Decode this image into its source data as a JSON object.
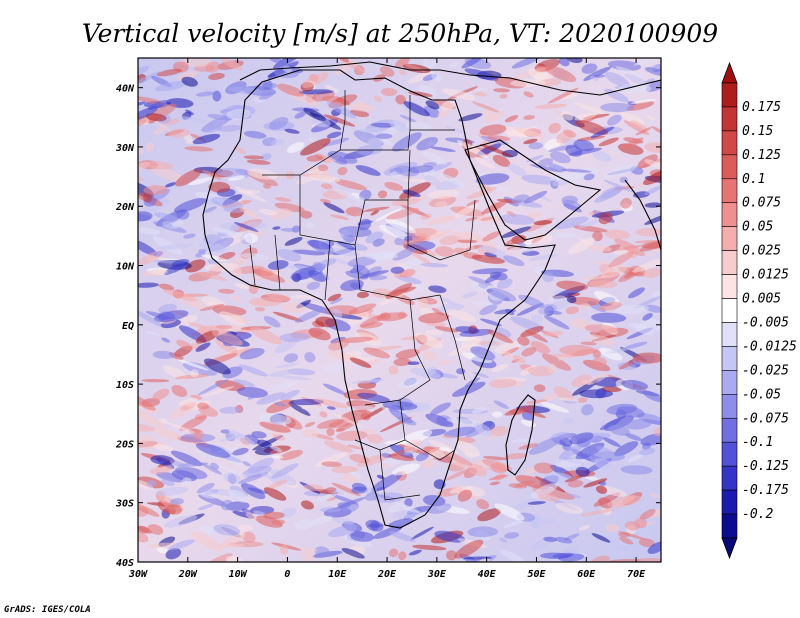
{
  "title": "Vertical velocity [m/s] at 250hPa, VT: 2020100909",
  "variable": "Vertical velocity",
  "units": "m/s",
  "level": "250hPa",
  "valid_time": "2020100909",
  "axes": {
    "lon_ticks": [
      "30W",
      "20W",
      "10W",
      "0",
      "10E",
      "20E",
      "30E",
      "40E",
      "50E",
      "60E",
      "70E"
    ],
    "lat_ticks": [
      "40N",
      "30N",
      "20N",
      "10N",
      "EQ",
      "10S",
      "20S",
      "30S",
      "40S"
    ],
    "lon_range": [
      -30,
      75
    ],
    "lat_range": [
      -40,
      45
    ]
  },
  "colorbar": {
    "labels": [
      "0.175",
      "0.15",
      "0.125",
      "0.1",
      "0.075",
      "0.05",
      "0.025",
      "0.0125",
      "0.005",
      "-0.005",
      "-0.0125",
      "-0.025",
      "-0.05",
      "-0.075",
      "-0.1",
      "-0.125",
      "-0.175",
      "-0.2"
    ],
    "colors": [
      "#b01c1c",
      "#c43434",
      "#d24848",
      "#dc5c5c",
      "#e67474",
      "#ee9090",
      "#f4aeae",
      "#f8cccc",
      "#fce4e4",
      "#ffffff",
      "#e0e0f8",
      "#c6c6f4",
      "#aaaaf0",
      "#8e8eea",
      "#7070e2",
      "#5252d8",
      "#3434c8",
      "#1a1ab0",
      "#0c0c90"
    ],
    "top_color": "#a01010",
    "bottom_color": "#080878"
  },
  "credit": "GrADS: IGES/COLA"
}
